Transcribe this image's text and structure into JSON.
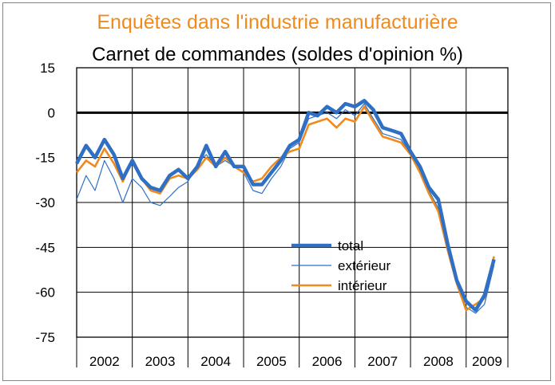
{
  "chart_data": {
    "type": "line",
    "title": "Enquêtes dans l'industrie manufacturière",
    "subtitle": "Carnet de commandes (soldes d'opinion %)",
    "xlabel": "",
    "ylabel": "",
    "ylim": [
      -75,
      15
    ],
    "yticks": [
      15,
      0,
      -15,
      -30,
      -45,
      -60,
      -75
    ],
    "years": [
      "2002",
      "2003",
      "2004",
      "2005",
      "2006",
      "2007",
      "2008",
      "2009"
    ],
    "x_start": 2002.0,
    "x_end": 2009.75,
    "grid": true,
    "legend_position": "center-right",
    "series": [
      {
        "name": "total",
        "color": "#2f6fc4",
        "values": [
          [
            2002.0,
            -17
          ],
          [
            2002.17,
            -11
          ],
          [
            2002.33,
            -15
          ],
          [
            2002.5,
            -9
          ],
          [
            2002.67,
            -14
          ],
          [
            2002.83,
            -22
          ],
          [
            2003.0,
            -16
          ],
          [
            2003.17,
            -22
          ],
          [
            2003.33,
            -25
          ],
          [
            2003.5,
            -26
          ],
          [
            2003.67,
            -21
          ],
          [
            2003.83,
            -19
          ],
          [
            2004.0,
            -22
          ],
          [
            2004.17,
            -18
          ],
          [
            2004.33,
            -11
          ],
          [
            2004.5,
            -18
          ],
          [
            2004.67,
            -13
          ],
          [
            2004.83,
            -18
          ],
          [
            2005.0,
            -18
          ],
          [
            2005.17,
            -24
          ],
          [
            2005.33,
            -24
          ],
          [
            2005.5,
            -20
          ],
          [
            2005.67,
            -16
          ],
          [
            2005.83,
            -11
          ],
          [
            2006.0,
            -9
          ],
          [
            2006.17,
            0
          ],
          [
            2006.33,
            -1
          ],
          [
            2006.5,
            2
          ],
          [
            2006.67,
            0
          ],
          [
            2006.83,
            3
          ],
          [
            2007.0,
            2
          ],
          [
            2007.17,
            4
          ],
          [
            2007.33,
            1
          ],
          [
            2007.5,
            -5
          ],
          [
            2007.67,
            -6
          ],
          [
            2007.83,
            -7
          ],
          [
            2008.0,
            -13
          ],
          [
            2008.17,
            -18
          ],
          [
            2008.33,
            -25
          ],
          [
            2008.5,
            -29
          ],
          [
            2008.67,
            -44
          ],
          [
            2008.83,
            -56
          ],
          [
            2009.0,
            -63
          ],
          [
            2009.17,
            -66
          ],
          [
            2009.33,
            -61
          ],
          [
            2009.5,
            -49
          ]
        ]
      },
      {
        "name": "extérieur",
        "color": "#2f6fc4",
        "values": [
          [
            2002.0,
            -29
          ],
          [
            2002.17,
            -21
          ],
          [
            2002.33,
            -26
          ],
          [
            2002.5,
            -16
          ],
          [
            2002.67,
            -22
          ],
          [
            2002.83,
            -30
          ],
          [
            2003.0,
            -22
          ],
          [
            2003.17,
            -25
          ],
          [
            2003.33,
            -30
          ],
          [
            2003.5,
            -31
          ],
          [
            2003.67,
            -28
          ],
          [
            2003.83,
            -25
          ],
          [
            2004.0,
            -23
          ],
          [
            2004.17,
            -17
          ],
          [
            2004.33,
            -14
          ],
          [
            2004.5,
            -18
          ],
          [
            2004.67,
            -16
          ],
          [
            2004.83,
            -18
          ],
          [
            2005.0,
            -20
          ],
          [
            2005.17,
            -26
          ],
          [
            2005.33,
            -27
          ],
          [
            2005.5,
            -22
          ],
          [
            2005.67,
            -18
          ],
          [
            2005.83,
            -12
          ],
          [
            2006.0,
            -10
          ],
          [
            2006.17,
            -2
          ],
          [
            2006.33,
            -1
          ],
          [
            2006.5,
            0
          ],
          [
            2006.67,
            -2
          ],
          [
            2006.83,
            1
          ],
          [
            2007.0,
            -1
          ],
          [
            2007.17,
            3
          ],
          [
            2007.33,
            -2
          ],
          [
            2007.5,
            -7
          ],
          [
            2007.67,
            -8
          ],
          [
            2007.83,
            -9
          ],
          [
            2008.0,
            -14
          ],
          [
            2008.17,
            -20
          ],
          [
            2008.33,
            -26
          ],
          [
            2008.5,
            -32
          ],
          [
            2008.67,
            -45
          ],
          [
            2008.83,
            -57
          ],
          [
            2009.0,
            -65
          ],
          [
            2009.17,
            -67
          ],
          [
            2009.33,
            -64
          ],
          [
            2009.5,
            -51
          ]
        ]
      },
      {
        "name": "intérieur",
        "color": "#f08a1c",
        "values": [
          [
            2002.0,
            -20
          ],
          [
            2002.17,
            -16
          ],
          [
            2002.33,
            -18
          ],
          [
            2002.5,
            -12
          ],
          [
            2002.67,
            -17
          ],
          [
            2002.83,
            -23
          ],
          [
            2003.0,
            -16
          ],
          [
            2003.17,
            -22
          ],
          [
            2003.33,
            -26
          ],
          [
            2003.5,
            -27
          ],
          [
            2003.67,
            -22
          ],
          [
            2003.83,
            -21
          ],
          [
            2004.0,
            -22
          ],
          [
            2004.17,
            -19
          ],
          [
            2004.33,
            -15
          ],
          [
            2004.5,
            -18
          ],
          [
            2004.67,
            -15
          ],
          [
            2004.83,
            -18
          ],
          [
            2005.0,
            -20
          ],
          [
            2005.17,
            -23
          ],
          [
            2005.33,
            -22
          ],
          [
            2005.5,
            -18
          ],
          [
            2005.67,
            -15
          ],
          [
            2005.83,
            -13
          ],
          [
            2006.0,
            -12
          ],
          [
            2006.17,
            -4
          ],
          [
            2006.33,
            -3
          ],
          [
            2006.5,
            -2
          ],
          [
            2006.67,
            -5
          ],
          [
            2006.83,
            -2
          ],
          [
            2007.0,
            -3
          ],
          [
            2007.17,
            2
          ],
          [
            2007.33,
            -3
          ],
          [
            2007.5,
            -8
          ],
          [
            2007.67,
            -9
          ],
          [
            2007.83,
            -10
          ],
          [
            2008.0,
            -14
          ],
          [
            2008.17,
            -20
          ],
          [
            2008.33,
            -27
          ],
          [
            2008.5,
            -33
          ],
          [
            2008.67,
            -46
          ],
          [
            2008.83,
            -57
          ],
          [
            2009.0,
            -66
          ],
          [
            2009.17,
            -64
          ],
          [
            2009.33,
            -62
          ],
          [
            2009.5,
            -48
          ]
        ]
      }
    ]
  }
}
